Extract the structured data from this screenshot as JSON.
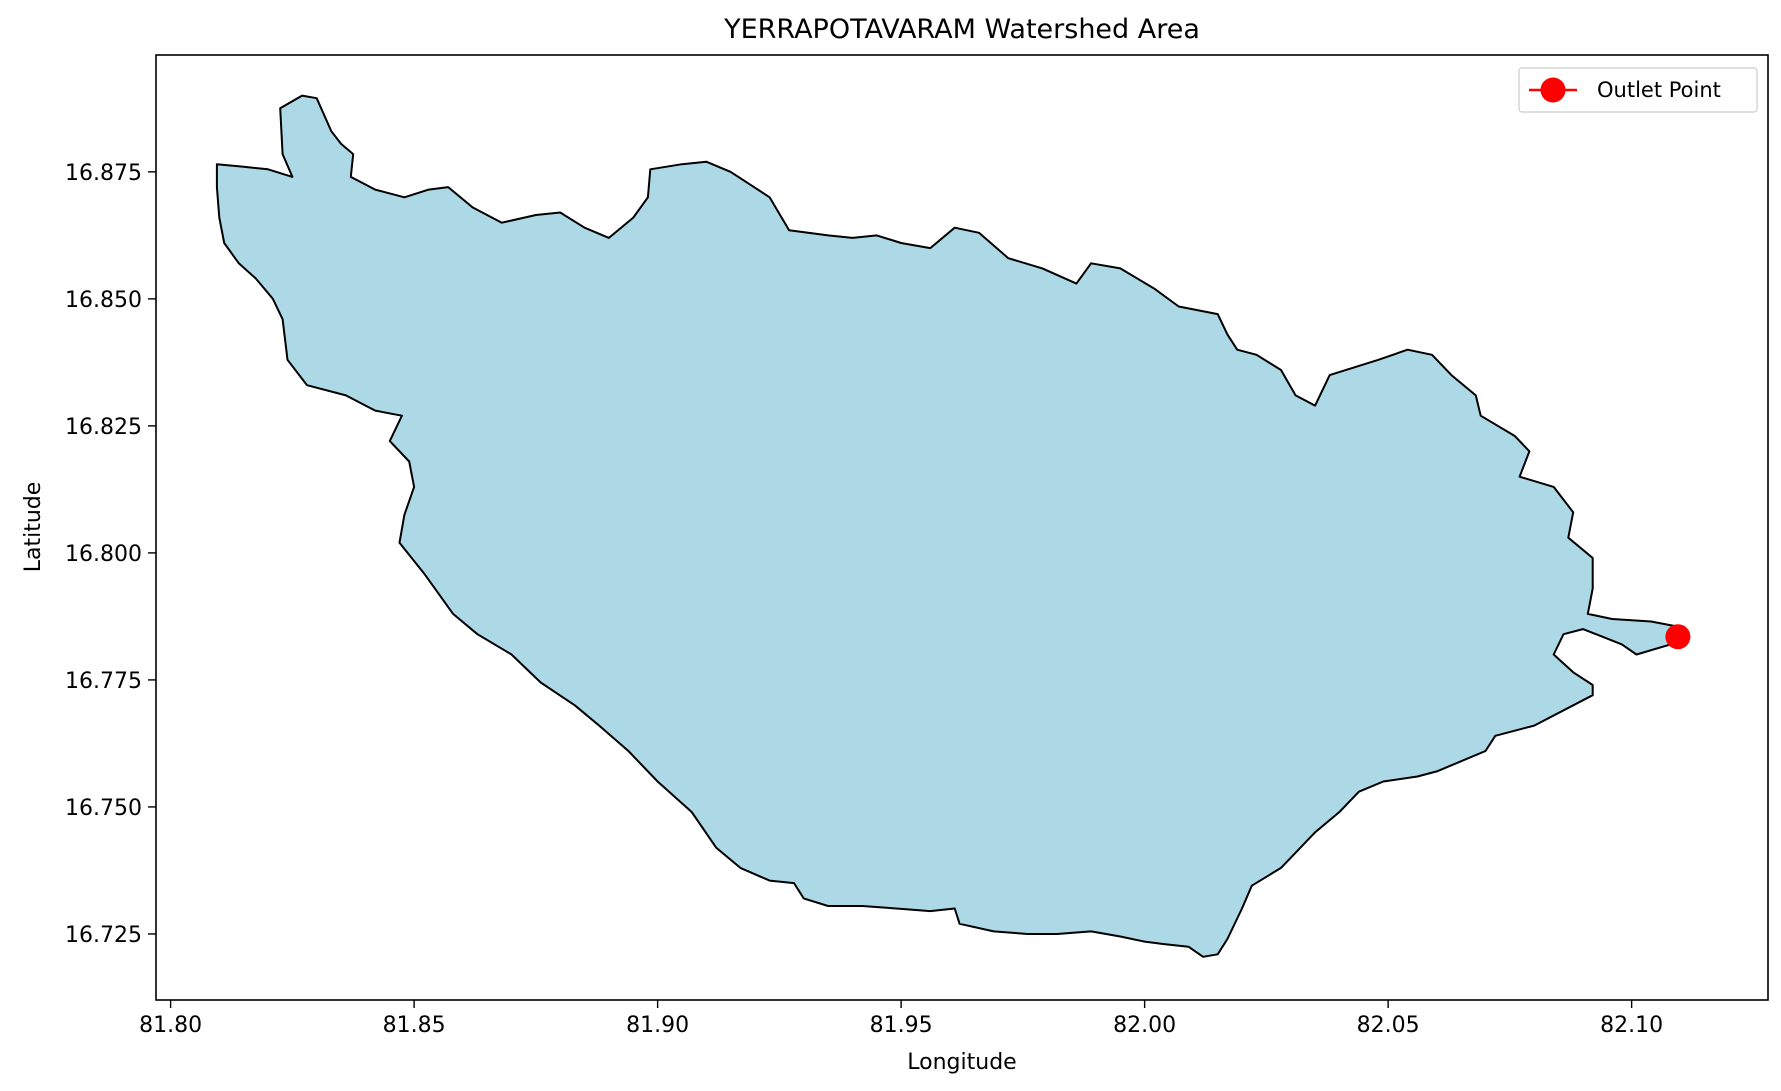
{
  "chart_data": {
    "type": "map",
    "title": "YERRAPOTAVARAM Watershed Area",
    "xlabel": "Longitude",
    "ylabel": "Latitude",
    "xlim": [
      81.797,
      82.128
    ],
    "ylim": [
      16.712,
      16.898
    ],
    "xticks": [
      81.8,
      81.85,
      81.9,
      81.95,
      82.0,
      82.05,
      82.1
    ],
    "xtick_labels": [
      "81.80",
      "81.85",
      "81.90",
      "81.95",
      "82.00",
      "82.05",
      "82.10"
    ],
    "yticks": [
      16.725,
      16.75,
      16.775,
      16.8,
      16.825,
      16.85,
      16.875
    ],
    "ytick_labels": [
      "16.725",
      "16.750",
      "16.775",
      "16.800",
      "16.825",
      "16.850",
      "16.875"
    ],
    "grid": false,
    "legend_position": "top-right",
    "legend_entries": [
      {
        "label": "Outlet Point",
        "color": "#ff0000",
        "marker": "circle"
      }
    ],
    "watershed": {
      "fill_color": "#add8e6",
      "edge_color": "#000000",
      "boundary": [
        [
          81.8095,
          16.8765
        ],
        [
          81.815,
          16.876
        ],
        [
          81.82,
          16.8755
        ],
        [
          81.825,
          16.874
        ],
        [
          81.823,
          16.8785
        ],
        [
          81.8225,
          16.8875
        ],
        [
          81.827,
          16.89
        ],
        [
          81.83,
          16.8895
        ],
        [
          81.833,
          16.883
        ],
        [
          81.835,
          16.8805
        ],
        [
          81.8375,
          16.8785
        ],
        [
          81.837,
          16.874
        ],
        [
          81.842,
          16.8715
        ],
        [
          81.848,
          16.87
        ],
        [
          81.853,
          16.8715
        ],
        [
          81.857,
          16.872
        ],
        [
          81.862,
          16.868
        ],
        [
          81.868,
          16.865
        ],
        [
          81.875,
          16.8665
        ],
        [
          81.88,
          16.867
        ],
        [
          81.885,
          16.864
        ],
        [
          81.89,
          16.862
        ],
        [
          81.895,
          16.866
        ],
        [
          81.898,
          16.87
        ],
        [
          81.8985,
          16.8755
        ],
        [
          81.905,
          16.8765
        ],
        [
          81.91,
          16.877
        ],
        [
          81.915,
          16.875
        ],
        [
          81.923,
          16.87
        ],
        [
          81.927,
          16.8635
        ],
        [
          81.935,
          16.8625
        ],
        [
          81.94,
          16.862
        ],
        [
          81.945,
          16.8625
        ],
        [
          81.95,
          16.861
        ],
        [
          81.956,
          16.86
        ],
        [
          81.961,
          16.864
        ],
        [
          81.966,
          16.863
        ],
        [
          81.972,
          16.858
        ],
        [
          81.979,
          16.856
        ],
        [
          81.986,
          16.853
        ],
        [
          81.989,
          16.857
        ],
        [
          81.995,
          16.856
        ],
        [
          82.002,
          16.852
        ],
        [
          82.007,
          16.8485
        ],
        [
          82.015,
          16.847
        ],
        [
          82.017,
          16.843
        ],
        [
          82.019,
          16.84
        ],
        [
          82.023,
          16.839
        ],
        [
          82.028,
          16.836
        ],
        [
          82.031,
          16.831
        ],
        [
          82.035,
          16.829
        ],
        [
          82.038,
          16.835
        ],
        [
          82.048,
          16.838
        ],
        [
          82.054,
          16.84
        ],
        [
          82.059,
          16.839
        ],
        [
          82.063,
          16.835
        ],
        [
          82.068,
          16.831
        ],
        [
          82.069,
          16.827
        ],
        [
          82.076,
          16.823
        ],
        [
          82.079,
          16.82
        ],
        [
          82.077,
          16.815
        ],
        [
          82.084,
          16.813
        ],
        [
          82.088,
          16.808
        ],
        [
          82.087,
          16.803
        ],
        [
          82.092,
          16.799
        ],
        [
          82.092,
          16.793
        ],
        [
          82.091,
          16.788
        ],
        [
          82.096,
          16.787
        ],
        [
          82.104,
          16.7865
        ],
        [
          82.1095,
          16.7855
        ],
        [
          82.108,
          16.782
        ],
        [
          82.101,
          16.78
        ],
        [
          82.098,
          16.782
        ],
        [
          82.094,
          16.7835
        ],
        [
          82.09,
          16.785
        ],
        [
          82.086,
          16.784
        ],
        [
          82.084,
          16.78
        ],
        [
          82.088,
          16.7765
        ],
        [
          82.092,
          16.774
        ],
        [
          82.092,
          16.772
        ],
        [
          82.088,
          16.77
        ],
        [
          82.08,
          16.766
        ],
        [
          82.072,
          16.764
        ],
        [
          82.07,
          16.761
        ],
        [
          82.065,
          16.759
        ],
        [
          82.06,
          16.757
        ],
        [
          82.056,
          16.756
        ],
        [
          82.049,
          16.755
        ],
        [
          82.044,
          16.753
        ],
        [
          82.04,
          16.749
        ],
        [
          82.035,
          16.745
        ],
        [
          82.031,
          16.741
        ],
        [
          82.028,
          16.738
        ],
        [
          82.022,
          16.7345
        ],
        [
          82.02,
          16.73
        ],
        [
          82.017,
          16.724
        ],
        [
          82.015,
          16.721
        ],
        [
          82.012,
          16.7205
        ],
        [
          82.009,
          16.7225
        ],
        [
          82.004,
          16.723
        ],
        [
          82.0,
          16.7235
        ],
        [
          81.995,
          16.7245
        ],
        [
          81.989,
          16.7255
        ],
        [
          81.982,
          16.725
        ],
        [
          81.976,
          16.725
        ],
        [
          81.969,
          16.7255
        ],
        [
          81.962,
          16.727
        ],
        [
          81.961,
          16.73
        ],
        [
          81.956,
          16.7295
        ],
        [
          81.949,
          16.73
        ],
        [
          81.942,
          16.7305
        ],
        [
          81.935,
          16.7305
        ],
        [
          81.93,
          16.732
        ],
        [
          81.928,
          16.735
        ],
        [
          81.923,
          16.7355
        ],
        [
          81.917,
          16.738
        ],
        [
          81.912,
          16.742
        ],
        [
          81.907,
          16.749
        ],
        [
          81.9,
          16.755
        ],
        [
          81.894,
          16.761
        ],
        [
          81.888,
          16.766
        ],
        [
          81.883,
          16.77
        ],
        [
          81.876,
          16.7745
        ],
        [
          81.87,
          16.78
        ],
        [
          81.863,
          16.784
        ],
        [
          81.858,
          16.788
        ],
        [
          81.852,
          16.796
        ],
        [
          81.847,
          16.802
        ],
        [
          81.848,
          16.8075
        ],
        [
          81.85,
          16.813
        ],
        [
          81.849,
          16.818
        ],
        [
          81.845,
          16.822
        ],
        [
          81.8475,
          16.827
        ],
        [
          81.842,
          16.828
        ],
        [
          81.836,
          16.831
        ],
        [
          81.828,
          16.833
        ],
        [
          81.824,
          16.838
        ],
        [
          81.823,
          16.846
        ],
        [
          81.821,
          16.85
        ],
        [
          81.8175,
          16.854
        ],
        [
          81.814,
          16.857
        ],
        [
          81.811,
          16.861
        ],
        [
          81.81,
          16.866
        ],
        [
          81.8095,
          16.872
        ]
      ]
    },
    "outlet_point": {
      "x": 82.1095,
      "y": 16.7835,
      "label": "Outlet Point",
      "color": "#ff0000"
    }
  }
}
